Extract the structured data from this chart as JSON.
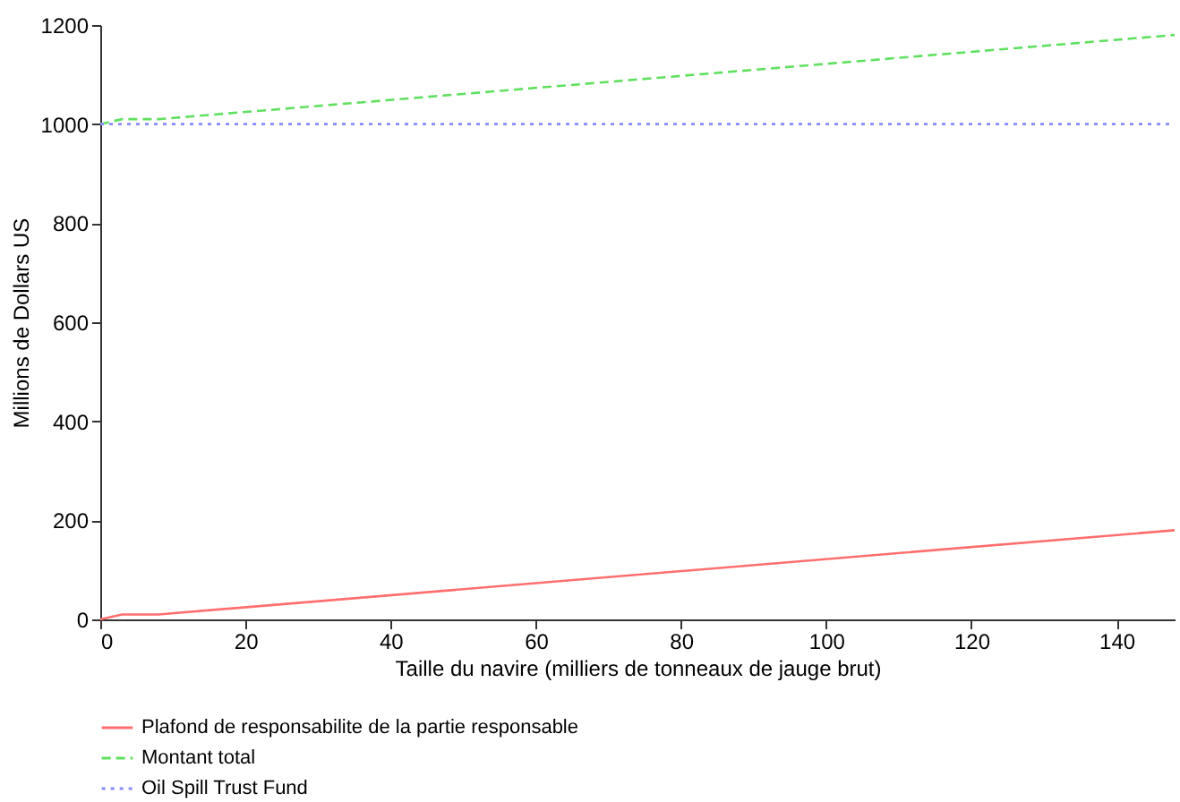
{
  "chart_data": {
    "type": "line",
    "xlabel": "Taille du navire (milliers de tonneaux de jauge brut)",
    "ylabel": "Millions de Dollars US",
    "xlim": [
      0,
      148
    ],
    "ylim": [
      0,
      1200
    ],
    "xticks": [
      0,
      20,
      40,
      60,
      80,
      100,
      120,
      140
    ],
    "yticks": [
      0,
      200,
      400,
      600,
      800,
      1000,
      1200
    ],
    "grid": false,
    "legend": "bottom",
    "marker": "none",
    "series": [
      {
        "name": "Plafond de responsabilite de la partie responsable",
        "color": "#ff6f6f",
        "line_style": "solid",
        "x": [
          0,
          3,
          8,
          148
        ],
        "values": [
          0,
          10,
          10,
          180
        ]
      },
      {
        "name": "Montant total",
        "color": "#5fe05f",
        "line_style": "dashed",
        "x": [
          0,
          3,
          8,
          148
        ],
        "values": [
          1000,
          1010,
          1010,
          1180
        ]
      },
      {
        "name": "Oil Spill Trust Fund",
        "color": "#8a8aff",
        "line_style": "dotted",
        "x": [
          0,
          148
        ],
        "values": [
          1000,
          1000
        ]
      }
    ]
  }
}
